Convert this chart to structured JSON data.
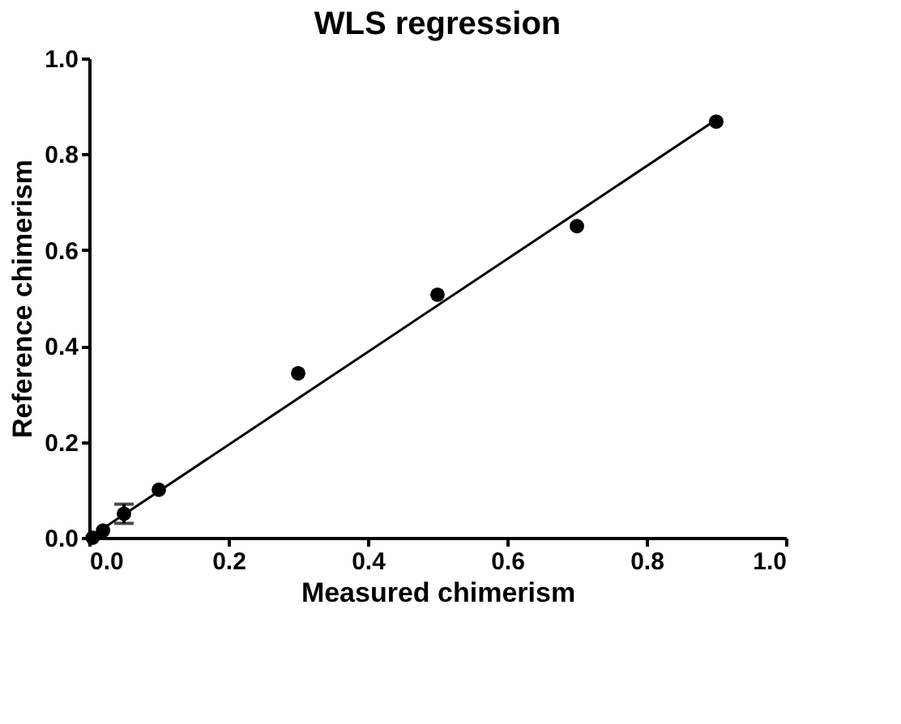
{
  "chart_data": {
    "type": "scatter",
    "title": "WLS regression",
    "xlabel": "Measured chimerism",
    "ylabel": "Reference chimerism",
    "x": [
      0.005,
      0.02,
      0.05,
      0.1,
      0.3,
      0.5,
      0.7,
      0.9
    ],
    "series": [
      {
        "color": "#000000",
        "marker": "circle",
        "values": [
          0.0,
          0.015,
          0.05,
          0.1,
          0.343,
          0.507,
          0.65,
          0.868
        ],
        "errors": [
          null,
          null,
          0.02,
          null,
          null,
          null,
          null,
          null
        ]
      },
      {
        "type": "line",
        "marker": "none",
        "color": "#000000",
        "x": [
          0.0,
          0.9
        ],
        "values": [
          0.0,
          0.872
        ]
      }
    ],
    "xlim": [
      0,
      1.0
    ],
    "ylim": [
      0,
      1.0
    ],
    "xticks": [
      {
        "value": 0,
        "label": "0.0"
      },
      0.2,
      0.4,
      0.6,
      0.8,
      {
        "value": 1,
        "label": "1.0"
      }
    ],
    "yticks": [
      {
        "value": 0,
        "label": "0.0"
      },
      0.2,
      0.4,
      0.6,
      0.8,
      {
        "value": 1,
        "label": "1.0"
      }
    ],
    "grid": false
  }
}
